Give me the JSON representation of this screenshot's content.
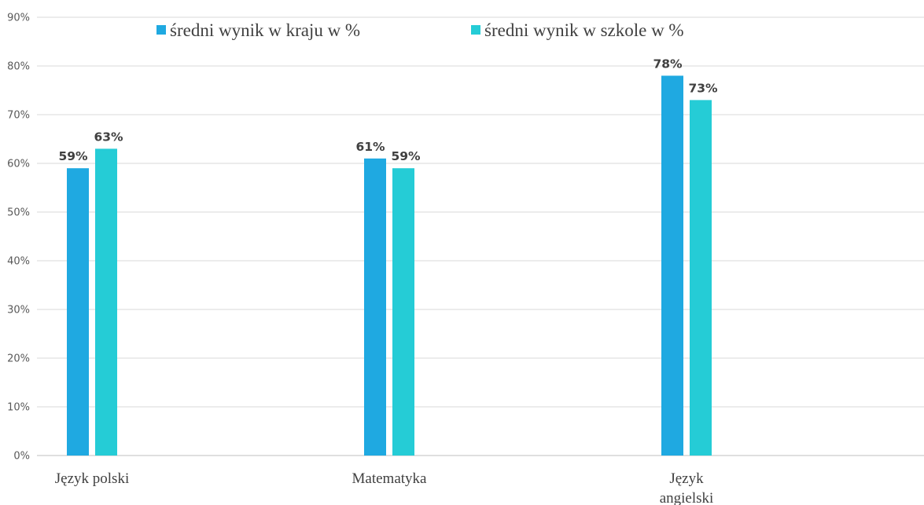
{
  "chart_data": {
    "type": "bar",
    "categories": [
      [
        "Język polski"
      ],
      [
        "Matematyka"
      ],
      [
        "Język",
        "angielski"
      ]
    ],
    "series": [
      {
        "name": "średni wynik w kraju w %",
        "color": "#1fa9e1",
        "values": [
          59,
          61,
          78
        ],
        "labels": [
          "59%",
          "61%",
          "78%"
        ]
      },
      {
        "name": "średni wynik w szkole w %",
        "color": "#25ccd6",
        "values": [
          63,
          59,
          73
        ],
        "labels": [
          "63%",
          "59%",
          "73%"
        ]
      }
    ],
    "y_ticks": [
      "0%",
      "10%",
      "20%",
      "30%",
      "40%",
      "50%",
      "60%",
      "70%",
      "80%",
      "90%"
    ],
    "ylim": [
      0,
      90
    ],
    "grid": true,
    "legend": "top-center",
    "title": "",
    "xlabel": "",
    "ylabel": ""
  }
}
